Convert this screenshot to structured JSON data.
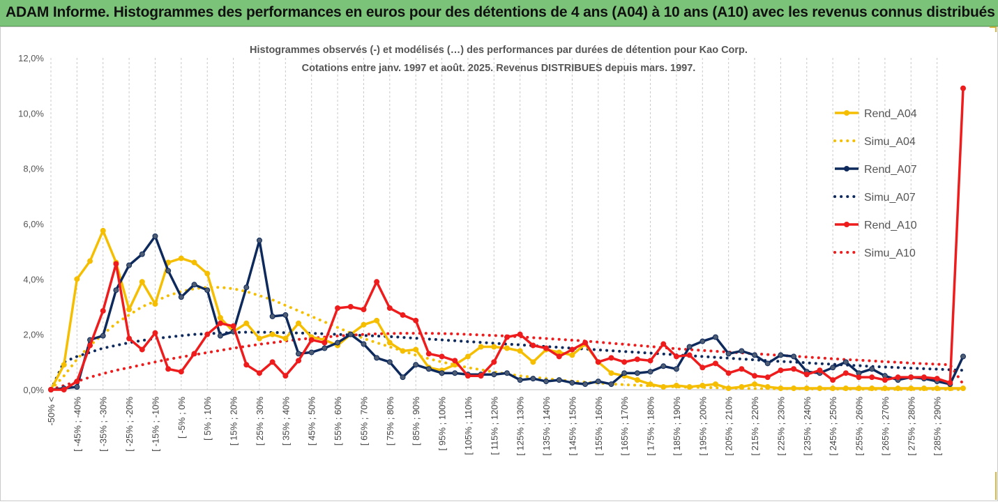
{
  "header": {
    "title": "ADAM Informe. Histogrammes des performances en euros pour des détentions de 4 ans (A04) à 10 ans (A10) avec les revenus connus distribués"
  },
  "chart_data": {
    "type": "line",
    "title_line1": "Histogrammes observés (-) et modélisés (…) des performances par durées de détention pour Kao Corp.",
    "title_line2": "Cotations entre janv. 1997 et août. 2025. Revenus DISTRIBUES depuis mars. 1997.",
    "ylim": [
      0,
      12
    ],
    "y_ticks": [
      "0,0%",
      "2,0%",
      "4,0%",
      "6,0%",
      "8,0%",
      "10,0%",
      "12,0%"
    ],
    "grid": "vertical dashed",
    "legend_position": "right",
    "x_labels": [
      "-50% <",
      "[ -45% ; -40%",
      "[ -35% ; -30%",
      "[ -25% ; -20%",
      "[ -15% ; -10%",
      "[ -5% ; 0%",
      "[ 5% ; 10%",
      "[ 15% ; 20%",
      "[ 25% ; 30%",
      "[ 35% ; 40%",
      "[ 45% ; 50%",
      "[ 55% ; 60%",
      "[ 65% ; 70%",
      "[ 75% ; 80%",
      "[ 85% ; 90%",
      "[ 95% ; 100%",
      "[ 105% ; 110%",
      "[ 115% ; 120%",
      "[ 125% ; 130%",
      "[ 135% ; 140%",
      "[ 145% ; 150%",
      "[ 155% ; 160%",
      "[ 165% ; 170%",
      "[ 175% ; 180%",
      "[ 185% ; 190%",
      "[ 195% ; 200%",
      "[ 205% ; 210%",
      "[ 215% ; 220%",
      "[ 225% ; 230%",
      "[ 235% ; 240%",
      "[ 245% ; 250%",
      "[ 255% ; 260%",
      "[ 265% ; 270%",
      "[ 275% ; 280%",
      "[ 285% ; 290%"
    ],
    "series": [
      {
        "name": "Rend_A04",
        "color": "#f5be00",
        "style": "solid",
        "markers": true,
        "values": [
          0.0,
          0.9,
          4.0,
          4.65,
          5.75,
          4.6,
          2.9,
          3.9,
          3.1,
          4.6,
          4.75,
          4.6,
          4.2,
          2.6,
          2.1,
          2.4,
          1.85,
          2.0,
          1.85,
          2.4,
          1.9,
          1.8,
          1.6,
          2.0,
          2.35,
          2.5,
          1.7,
          1.4,
          1.45,
          0.8,
          0.7,
          0.9,
          1.2,
          1.55,
          1.55,
          1.5,
          1.4,
          1.0,
          1.45,
          1.35,
          1.25,
          1.65,
          1.0,
          0.6,
          0.5,
          0.35,
          0.2,
          0.1,
          0.15,
          0.1,
          0.15,
          0.2,
          0.05,
          0.1,
          0.2,
          0.1,
          0.05,
          0.05,
          0.05,
          0.05,
          0.05,
          0.05,
          0.05,
          0.05,
          0.05,
          0.05,
          0.05,
          0.05,
          0.05,
          0.05,
          0.05
        ]
      },
      {
        "name": "Simu_A04",
        "color": "#f5be00",
        "style": "dotted",
        "markers": false,
        "values": [
          0.0,
          0.5,
          1.1,
          1.6,
          2.0,
          2.4,
          2.7,
          3.0,
          3.2,
          3.4,
          3.55,
          3.65,
          3.7,
          3.7,
          3.65,
          3.55,
          3.4,
          3.25,
          3.05,
          2.85,
          2.65,
          2.45,
          2.25,
          2.05,
          1.85,
          1.7,
          1.55,
          1.4,
          1.25,
          1.12,
          1.0,
          0.9,
          0.8,
          0.72,
          0.64,
          0.57,
          0.5,
          0.45,
          0.4,
          0.35,
          0.31,
          0.27,
          0.24,
          0.21,
          0.18,
          0.16,
          0.14,
          0.12,
          0.1,
          0.09,
          0.08,
          0.07,
          0.06,
          0.05,
          0.04,
          0.04,
          0.03,
          0.03,
          0.03,
          0.02,
          0.02,
          0.02,
          0.02,
          0.01,
          0.01,
          0.01,
          0.01,
          0.01,
          0.01,
          0.01,
          0.0
        ]
      },
      {
        "name": "Rend_A07",
        "color": "#0e2a5c",
        "style": "solid",
        "markers": true,
        "values": [
          0.0,
          0.05,
          0.1,
          1.8,
          1.95,
          3.6,
          4.5,
          4.9,
          5.55,
          4.3,
          3.35,
          3.8,
          3.6,
          1.95,
          2.1,
          3.7,
          5.4,
          2.65,
          2.7,
          1.3,
          1.35,
          1.5,
          1.7,
          2.0,
          1.65,
          1.15,
          1.0,
          0.45,
          0.9,
          0.75,
          0.6,
          0.6,
          0.55,
          0.55,
          0.55,
          0.6,
          0.35,
          0.4,
          0.3,
          0.35,
          0.25,
          0.2,
          0.3,
          0.2,
          0.6,
          0.6,
          0.65,
          0.85,
          0.75,
          1.55,
          1.75,
          1.9,
          1.3,
          1.4,
          1.25,
          0.95,
          1.25,
          1.2,
          0.65,
          0.6,
          0.8,
          1.0,
          0.6,
          0.75,
          0.5,
          0.35,
          0.45,
          0.4,
          0.3,
          0.2,
          1.2
        ]
      },
      {
        "name": "Simu_A07",
        "color": "#0e2a5c",
        "style": "dotted",
        "markers": false,
        "values": [
          0.0,
          1.0,
          1.2,
          1.35,
          1.5,
          1.6,
          1.7,
          1.78,
          1.85,
          1.9,
          1.95,
          2.0,
          2.02,
          2.05,
          2.07,
          2.08,
          2.08,
          2.07,
          2.06,
          2.05,
          2.04,
          2.02,
          2.0,
          1.98,
          1.96,
          1.94,
          1.92,
          1.89,
          1.86,
          1.83,
          1.8,
          1.77,
          1.74,
          1.71,
          1.68,
          1.65,
          1.62,
          1.59,
          1.56,
          1.53,
          1.5,
          1.47,
          1.44,
          1.41,
          1.38,
          1.35,
          1.32,
          1.29,
          1.26,
          1.23,
          1.2,
          1.17,
          1.14,
          1.11,
          1.08,
          1.05,
          1.02,
          1.0,
          0.97,
          0.94,
          0.92,
          0.89,
          0.87,
          0.84,
          0.82,
          0.8,
          0.78,
          0.76,
          0.74,
          0.72,
          0.7
        ]
      },
      {
        "name": "Rend_A10",
        "color": "#ee1c1c",
        "style": "solid",
        "markers": true,
        "values": [
          0.0,
          0.0,
          0.3,
          1.6,
          2.85,
          4.55,
          1.85,
          1.45,
          2.05,
          0.75,
          0.65,
          1.3,
          2.0,
          2.4,
          2.3,
          0.9,
          0.6,
          1.0,
          0.5,
          1.05,
          1.8,
          1.7,
          2.95,
          3.0,
          2.9,
          3.9,
          2.95,
          2.7,
          2.5,
          1.3,
          1.2,
          1.05,
          0.5,
          0.5,
          1.0,
          1.9,
          2.0,
          1.6,
          1.5,
          1.2,
          1.45,
          1.7,
          1.0,
          1.15,
          1.0,
          1.1,
          1.05,
          1.65,
          1.2,
          1.25,
          0.8,
          0.95,
          0.6,
          0.75,
          0.5,
          0.45,
          0.7,
          0.75,
          0.55,
          0.7,
          0.35,
          0.6,
          0.45,
          0.45,
          0.35,
          0.45,
          0.45,
          0.45,
          0.4,
          0.25,
          10.9
        ]
      },
      {
        "name": "Simu_A10",
        "color": "#ee1c1c",
        "style": "dotted",
        "markers": false,
        "values": [
          0.0,
          0.15,
          0.3,
          0.45,
          0.58,
          0.7,
          0.8,
          0.9,
          1.0,
          1.1,
          1.18,
          1.26,
          1.34,
          1.42,
          1.5,
          1.57,
          1.64,
          1.7,
          1.76,
          1.82,
          1.86,
          1.9,
          1.94,
          1.97,
          2.0,
          2.02,
          2.03,
          2.04,
          2.04,
          2.04,
          2.03,
          2.02,
          2.0,
          1.98,
          1.96,
          1.94,
          1.91,
          1.88,
          1.85,
          1.82,
          1.79,
          1.76,
          1.72,
          1.68,
          1.64,
          1.6,
          1.56,
          1.52,
          1.48,
          1.45,
          1.42,
          1.39,
          1.36,
          1.33,
          1.3,
          1.27,
          1.24,
          1.21,
          1.18,
          1.15,
          1.12,
          1.09,
          1.07,
          1.04,
          1.01,
          0.99,
          0.96,
          0.94,
          0.92,
          0.9,
          0.2
        ]
      }
    ]
  }
}
